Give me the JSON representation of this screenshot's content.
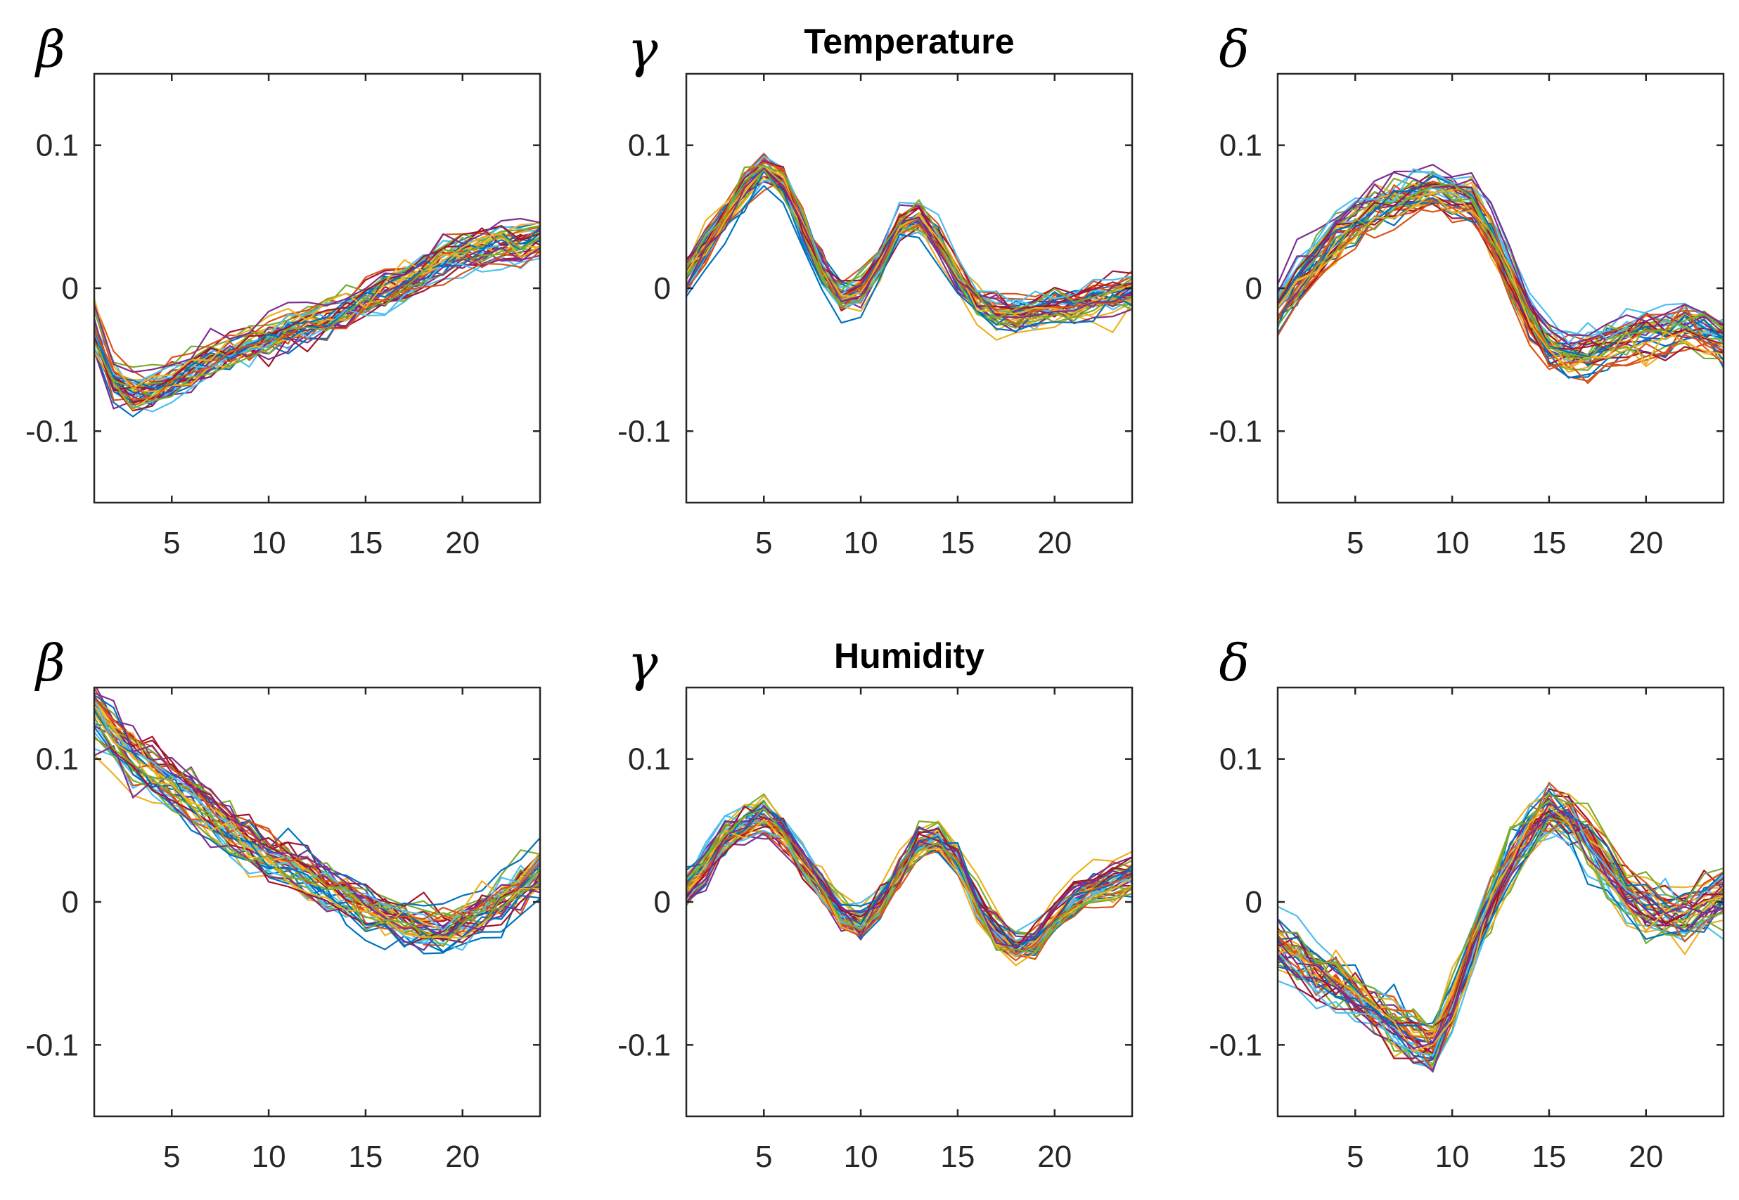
{
  "figure": {
    "row_titles": [
      "Temperature",
      "Humidity"
    ]
  },
  "palette": [
    "#0072BD",
    "#D95319",
    "#EDB120",
    "#7E2F8E",
    "#77AC30",
    "#4DBEEE",
    "#A2142F"
  ],
  "chart_data": [
    {
      "type": "line",
      "name": "temperature-beta",
      "ylabel": "β",
      "title": "",
      "xlim": [
        1,
        24
      ],
      "ylim": [
        -0.15,
        0.15
      ],
      "xticks": [
        "5",
        "10",
        "15",
        "20"
      ],
      "yticks": [
        "0.1",
        "0",
        "-0.1"
      ],
      "n_series": 40,
      "line_count_note": "~40 overlaid curves; mean profile shown",
      "x": [
        1,
        2,
        3,
        4,
        5,
        6,
        7,
        8,
        9,
        10,
        11,
        12,
        13,
        14,
        15,
        16,
        17,
        18,
        19,
        20,
        21,
        22,
        23,
        24
      ],
      "mean": [
        -0.03,
        -0.065,
        -0.075,
        -0.072,
        -0.065,
        -0.058,
        -0.05,
        -0.045,
        -0.04,
        -0.035,
        -0.03,
        -0.025,
        -0.02,
        -0.015,
        -0.008,
        -0.002,
        0.005,
        0.012,
        0.02,
        0.025,
        0.028,
        0.03,
        0.032,
        0.035
      ],
      "spread": 0.018
    },
    {
      "type": "line",
      "name": "temperature-gamma",
      "ylabel": "γ",
      "title": "Temperature",
      "xlim": [
        1,
        24
      ],
      "ylim": [
        -0.15,
        0.15
      ],
      "xticks": [
        "5",
        "10",
        "15",
        "20"
      ],
      "yticks": [
        "0.1",
        "0",
        "-0.1"
      ],
      "n_series": 40,
      "x": [
        1,
        2,
        3,
        4,
        5,
        6,
        7,
        8,
        9,
        10,
        11,
        12,
        13,
        14,
        15,
        16,
        17,
        18,
        19,
        20,
        21,
        22,
        23,
        24
      ],
      "mean": [
        0.01,
        0.03,
        0.05,
        0.07,
        0.085,
        0.075,
        0.045,
        0.015,
        -0.005,
        0.0,
        0.02,
        0.045,
        0.05,
        0.035,
        0.01,
        -0.008,
        -0.015,
        -0.018,
        -0.015,
        -0.01,
        -0.012,
        -0.008,
        -0.005,
        0.0
      ],
      "spread": 0.016
    },
    {
      "type": "line",
      "name": "temperature-delta",
      "ylabel": "δ",
      "title": "",
      "xlim": [
        1,
        24
      ],
      "ylim": [
        -0.15,
        0.15
      ],
      "xticks": [
        "5",
        "10",
        "15",
        "20"
      ],
      "yticks": [
        "0.1",
        "0",
        "-0.1"
      ],
      "n_series": 40,
      "x": [
        1,
        2,
        3,
        4,
        5,
        6,
        7,
        8,
        9,
        10,
        11,
        12,
        13,
        14,
        15,
        16,
        17,
        18,
        19,
        20,
        21,
        22,
        23,
        24
      ],
      "mean": [
        -0.015,
        0.005,
        0.02,
        0.035,
        0.045,
        0.055,
        0.06,
        0.065,
        0.07,
        0.065,
        0.06,
        0.04,
        0.01,
        -0.02,
        -0.04,
        -0.045,
        -0.045,
        -0.04,
        -0.035,
        -0.03,
        -0.03,
        -0.025,
        -0.03,
        -0.035
      ],
      "spread": 0.02
    },
    {
      "type": "line",
      "name": "humidity-beta",
      "ylabel": "β",
      "title": "",
      "xlim": [
        1,
        24
      ],
      "ylim": [
        -0.15,
        0.15
      ],
      "xticks": [
        "5",
        "10",
        "15",
        "20"
      ],
      "yticks": [
        "0.1",
        "0",
        "-0.1"
      ],
      "n_series": 40,
      "x": [
        1,
        2,
        3,
        4,
        5,
        6,
        7,
        8,
        9,
        10,
        11,
        12,
        13,
        14,
        15,
        16,
        17,
        18,
        19,
        20,
        21,
        22,
        23,
        24
      ],
      "mean": [
        0.13,
        0.115,
        0.1,
        0.09,
        0.08,
        0.07,
        0.06,
        0.05,
        0.04,
        0.032,
        0.025,
        0.018,
        0.01,
        0.003,
        -0.005,
        -0.01,
        -0.015,
        -0.02,
        -0.02,
        -0.015,
        -0.008,
        0.0,
        0.01,
        0.02
      ],
      "spread": 0.022
    },
    {
      "type": "line",
      "name": "humidity-gamma",
      "ylabel": "γ",
      "title": "Humidity",
      "xlim": [
        1,
        24
      ],
      "ylim": [
        -0.15,
        0.15
      ],
      "xticks": [
        "5",
        "10",
        "15",
        "20"
      ],
      "yticks": [
        "0.1",
        "0",
        "-0.1"
      ],
      "n_series": 40,
      "x": [
        1,
        2,
        3,
        4,
        5,
        6,
        7,
        8,
        9,
        10,
        11,
        12,
        13,
        14,
        15,
        16,
        17,
        18,
        19,
        20,
        21,
        22,
        23,
        24
      ],
      "mean": [
        0.01,
        0.025,
        0.045,
        0.055,
        0.06,
        0.05,
        0.03,
        0.01,
        -0.01,
        -0.015,
        0.0,
        0.02,
        0.04,
        0.045,
        0.03,
        0.0,
        -0.02,
        -0.03,
        -0.025,
        -0.01,
        0.005,
        0.01,
        0.015,
        0.02
      ],
      "spread": 0.016
    },
    {
      "type": "line",
      "name": "humidity-delta",
      "ylabel": "δ",
      "title": "",
      "xlim": [
        1,
        24
      ],
      "ylim": [
        -0.15,
        0.15
      ],
      "xticks": [
        "5",
        "10",
        "15",
        "20"
      ],
      "yticks": [
        "0.1",
        "0",
        "-0.1"
      ],
      "n_series": 40,
      "x": [
        1,
        2,
        3,
        4,
        5,
        6,
        7,
        8,
        9,
        10,
        11,
        12,
        13,
        14,
        15,
        16,
        17,
        18,
        19,
        20,
        21,
        22,
        23,
        24
      ],
      "mean": [
        -0.03,
        -0.04,
        -0.05,
        -0.055,
        -0.065,
        -0.075,
        -0.085,
        -0.095,
        -0.1,
        -0.07,
        -0.03,
        0.0,
        0.03,
        0.05,
        0.065,
        0.06,
        0.045,
        0.025,
        0.01,
        0.0,
        -0.005,
        -0.01,
        0.0,
        0.01
      ],
      "spread": 0.025
    }
  ]
}
